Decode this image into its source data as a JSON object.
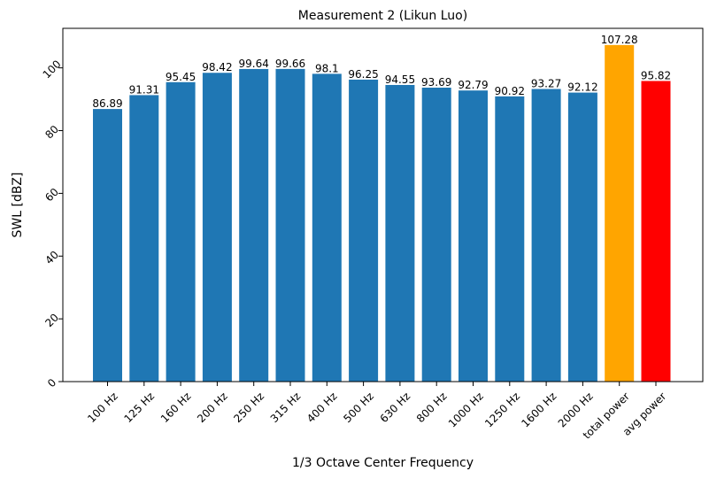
{
  "chart_data": {
    "type": "bar",
    "title": "Measurement 2 (Likun Luo)",
    "xlabel": "1/3 Octave Center Frequency",
    "ylabel": "SWL [dBZ]",
    "categories": [
      "100 Hz",
      "125 Hz",
      "160 Hz",
      "200 Hz",
      "250 Hz",
      "315 Hz",
      "400 Hz",
      "500 Hz",
      "630 Hz",
      "800 Hz",
      "1000 Hz",
      "1250 Hz",
      "1600 Hz",
      "2000 Hz",
      "total power",
      "avg power"
    ],
    "values": [
      86.89,
      91.31,
      95.45,
      98.42,
      99.64,
      99.66,
      98.1,
      96.25,
      94.55,
      93.69,
      92.79,
      90.92,
      93.27,
      92.12,
      107.28,
      95.82
    ],
    "value_labels": [
      "86.89",
      "91.31",
      "95.45",
      "98.42",
      "99.64",
      "99.66",
      "98.1",
      "96.25",
      "94.55",
      "93.69",
      "92.79",
      "90.92",
      "93.27",
      "92.12",
      "107.28",
      "95.82"
    ],
    "colors": [
      "#1f77b4",
      "#1f77b4",
      "#1f77b4",
      "#1f77b4",
      "#1f77b4",
      "#1f77b4",
      "#1f77b4",
      "#1f77b4",
      "#1f77b4",
      "#1f77b4",
      "#1f77b4",
      "#1f77b4",
      "#1f77b4",
      "#1f77b4",
      "#ffa500",
      "#ff0000"
    ],
    "ylim": [
      0,
      112.6
    ],
    "yticks": [
      0,
      20,
      40,
      60,
      80,
      100
    ],
    "grid": false,
    "legend": false
  }
}
